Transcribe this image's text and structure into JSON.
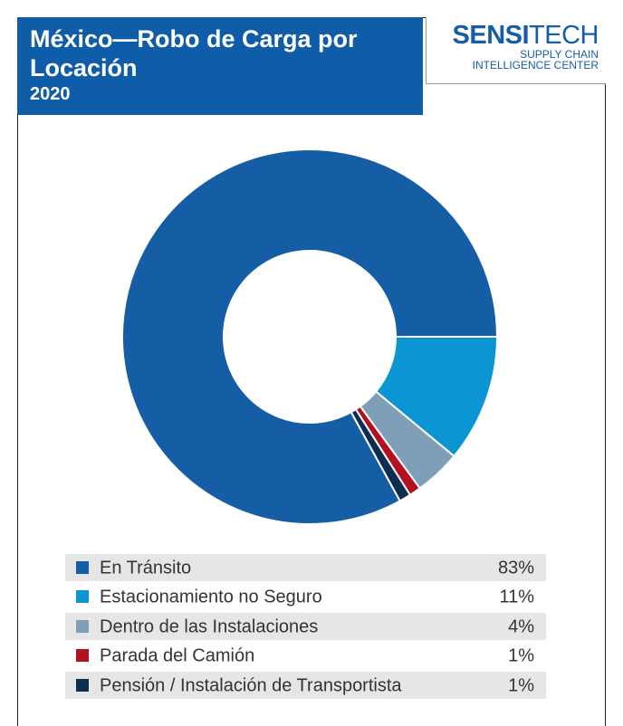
{
  "chart_data": {
    "type": "donut",
    "title": "México—Robo de Carga por Locación",
    "subtitle": "2020",
    "logo": {
      "brand_bold": "SENSI",
      "brand_light": "TECH",
      "tagline_1": "SUPPLY CHAIN",
      "tagline_2": "INTELLIGENCE CENTER"
    },
    "categories": [
      "En Tránsito",
      "Estacionamiento no Seguro",
      "Dentro de las Instalaciones",
      "Parada del Camión",
      "Pensión / Instalación de Transportista"
    ],
    "values": [
      83,
      11,
      4,
      1,
      1
    ],
    "value_labels": [
      "83%",
      "11%",
      "4%",
      "1%",
      "1%"
    ],
    "colors": [
      "#155ea6",
      "#0b95d2",
      "#7f9fb8",
      "#b2121f",
      "#0e2e50"
    ]
  }
}
